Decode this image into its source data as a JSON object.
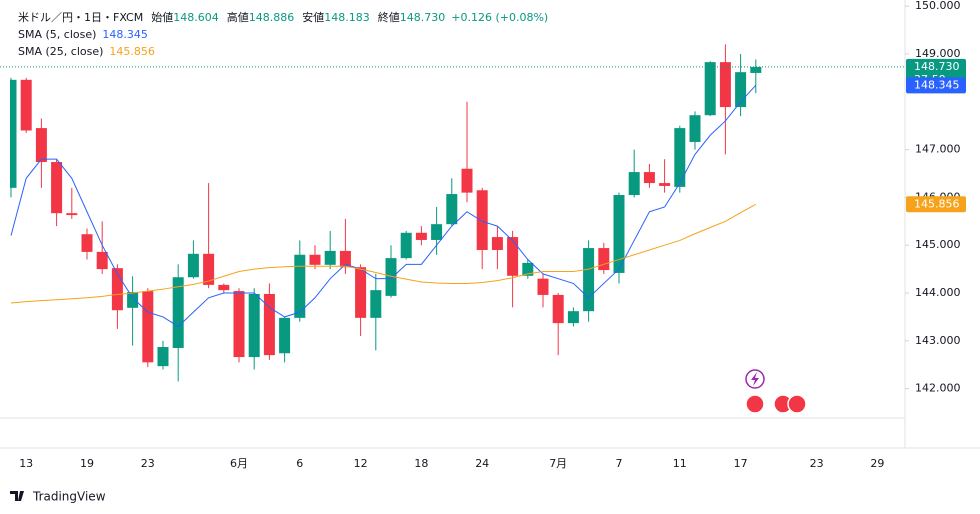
{
  "chart_data": {
    "type": "candlestick",
    "header": {
      "symbol": "米ドル／円・1日・FXCM",
      "ohlc": [
        {
          "label": "始値",
          "value": "148.604"
        },
        {
          "label": "高値",
          "value": "148.886"
        },
        {
          "label": "安値",
          "value": "148.183"
        },
        {
          "label": "終値",
          "value": "148.730"
        }
      ],
      "change": "+0.126 (+0.08%)"
    },
    "categories": [
      null,
      "13",
      null,
      null,
      null,
      "19",
      null,
      null,
      null,
      "23",
      null,
      null,
      null,
      null,
      null,
      "6月",
      null,
      null,
      null,
      "6",
      null,
      null,
      null,
      "12",
      null,
      null,
      null,
      "18",
      null,
      null,
      null,
      "24",
      null,
      null,
      null,
      null,
      "7月",
      null,
      null,
      null,
      "7",
      null,
      null,
      null,
      "11",
      null,
      null,
      null,
      "17",
      null,
      null,
      null,
      null,
      "23",
      null,
      null,
      null,
      "29",
      null
    ],
    "series": [
      {
        "name": "米ドル／円",
        "up_color": "#089981",
        "down_color": "#f23645",
        "open": [
          146.2,
          148.46,
          147.45,
          146.74,
          145.67,
          145.23,
          144.86,
          144.52,
          143.69,
          144.04,
          142.47,
          142.85,
          144.33,
          144.82,
          144.17,
          144.04,
          142.66,
          143.98,
          142.74,
          143.48,
          144.8,
          144.59,
          144.88,
          144.54,
          143.48,
          143.94,
          144.73,
          145.26,
          145.11,
          145.44,
          146.6,
          146.15,
          145.17,
          145.17,
          144.36,
          144.3,
          143.96,
          143.37,
          143.62,
          144.94,
          144.42,
          146.05,
          146.53,
          146.3,
          146.22,
          147.16,
          147.72,
          148.83,
          147.89,
          148.604,
          null,
          null,
          null,
          null,
          null,
          null,
          null,
          null,
          null
        ],
        "high": [
          148.5,
          148.5,
          147.65,
          146.8,
          146.2,
          145.35,
          145.5,
          144.6,
          144.35,
          144.1,
          143.0,
          144.6,
          145.1,
          146.3,
          144.2,
          144.1,
          144.1,
          144.2,
          143.5,
          145.1,
          145.0,
          145.3,
          145.55,
          144.6,
          144.4,
          145.0,
          145.3,
          145.4,
          145.8,
          146.4,
          148.0,
          146.2,
          145.4,
          145.3,
          144.7,
          144.4,
          144.0,
          143.7,
          145.1,
          145.05,
          146.1,
          147.0,
          146.7,
          146.8,
          147.5,
          147.8,
          148.85,
          149.2,
          149.0,
          148.886,
          null,
          null,
          null,
          null,
          null,
          null,
          null,
          null,
          null
        ],
        "low": [
          146.0,
          147.35,
          146.2,
          145.4,
          145.55,
          144.7,
          144.4,
          143.25,
          142.9,
          142.45,
          142.4,
          142.15,
          144.3,
          144.1,
          144.0,
          142.55,
          142.4,
          142.6,
          142.55,
          143.4,
          144.5,
          144.5,
          144.4,
          143.1,
          142.8,
          143.9,
          144.7,
          145.0,
          144.8,
          145.4,
          145.9,
          144.5,
          144.5,
          143.7,
          144.3,
          143.7,
          142.7,
          143.3,
          143.4,
          144.4,
          144.2,
          146.0,
          146.2,
          146.1,
          146.1,
          147.0,
          147.7,
          146.9,
          147.7,
          148.183,
          null,
          null,
          null,
          null,
          null,
          null,
          null,
          null,
          null
        ],
        "close": [
          148.46,
          147.4,
          146.74,
          145.67,
          145.63,
          144.86,
          144.5,
          143.64,
          144.02,
          142.55,
          142.87,
          144.33,
          144.82,
          144.17,
          144.06,
          142.66,
          143.98,
          142.7,
          143.48,
          144.8,
          144.59,
          144.88,
          144.54,
          143.48,
          144.06,
          144.73,
          145.26,
          145.11,
          145.44,
          146.07,
          146.1,
          144.9,
          144.9,
          144.36,
          144.63,
          143.96,
          143.37,
          143.62,
          144.94,
          144.48,
          146.05,
          146.53,
          146.3,
          146.24,
          147.45,
          147.72,
          148.83,
          147.89,
          148.62,
          148.73,
          null,
          null,
          null,
          null,
          null,
          null,
          null,
          null,
          null
        ],
        "last_label": {
          "value": 148.73,
          "label": "148.730"
        },
        "countdown": "37:59"
      },
      {
        "name": "SMA (5, close)",
        "color": "#2962ff",
        "legend_value": "148.345",
        "values": [
          145.2,
          146.4,
          146.8,
          146.8,
          146.4,
          145.7,
          145.0,
          144.4,
          143.9,
          143.6,
          143.5,
          143.3,
          143.6,
          143.9,
          144.0,
          144.0,
          144.0,
          143.7,
          143.5,
          143.6,
          143.9,
          144.3,
          144.6,
          144.5,
          144.3,
          144.3,
          144.6,
          144.6,
          145.0,
          145.4,
          145.7,
          145.5,
          145.4,
          145.1,
          144.7,
          144.4,
          144.3,
          144.2,
          143.9,
          144.2,
          144.5,
          145.1,
          145.7,
          145.8,
          146.3,
          146.9,
          147.3,
          147.6,
          148.0,
          148.345,
          null,
          null,
          null,
          null,
          null,
          null,
          null,
          null,
          null
        ],
        "last_label": {
          "value": 148.345,
          "label": "148.345"
        }
      },
      {
        "name": "SMA (25, close)",
        "color": "#f7a21b",
        "legend_value": "145.856",
        "values": [
          143.79,
          143.82,
          143.84,
          143.86,
          143.88,
          143.9,
          143.93,
          143.97,
          144.0,
          144.04,
          144.08,
          144.13,
          144.18,
          144.25,
          144.35,
          144.45,
          144.5,
          144.53,
          144.55,
          144.56,
          144.56,
          144.56,
          144.56,
          144.5,
          144.43,
          144.35,
          144.29,
          144.23,
          144.21,
          144.2,
          144.2,
          144.22,
          144.26,
          144.32,
          144.4,
          144.45,
          144.45,
          144.45,
          144.5,
          144.6,
          144.7,
          144.8,
          144.9,
          145.0,
          145.1,
          145.24,
          145.37,
          145.5,
          145.68,
          145.856,
          null,
          null,
          null,
          null,
          null,
          null,
          null,
          null,
          null
        ],
        "last_label": {
          "value": 145.856,
          "label": "145.856"
        }
      }
    ],
    "ylim": [
      141.385,
      150.13
    ],
    "yticks": [
      {
        "value": 150,
        "label": "150.000"
      },
      {
        "value": 149,
        "label": "149.000"
      },
      {
        "value": 147,
        "label": "147.000"
      },
      {
        "value": 146,
        "label": "146.000"
      },
      {
        "value": 145,
        "label": "145.000"
      },
      {
        "value": 144,
        "label": "144.000"
      },
      {
        "value": 143,
        "label": "143.000"
      },
      {
        "value": 142,
        "label": "142.000"
      }
    ],
    "grid": false,
    "branding": "TradingView"
  }
}
